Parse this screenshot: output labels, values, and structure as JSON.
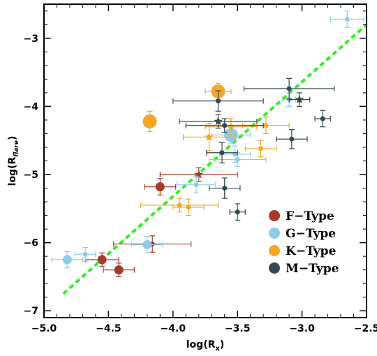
{
  "chart_data": {
    "type": "scatter",
    "title": "",
    "xlabel": {
      "base": "log(R",
      "sub": "x",
      "tail": ")"
    },
    "ylabel": {
      "base": "log(R",
      "sub": "flare",
      "tail": ")"
    },
    "xlim": [
      -5.0,
      -2.5
    ],
    "ylim": [
      -7.1,
      -2.5
    ],
    "x_ticks": [
      -5.0,
      -4.5,
      -4.0,
      -3.5,
      -3.0,
      -2.5
    ],
    "x_tick_labels": [
      "-5.0",
      "-4.5",
      "-4.0",
      "-3.5",
      "-3.0",
      "-2.5"
    ],
    "y_ticks": [
      -7,
      -6,
      -5,
      -4,
      -3
    ],
    "y_tick_labels": [
      "-7",
      "-6",
      "-5",
      "-4",
      "-3"
    ],
    "legend_position": "bottom-right",
    "fit_line": {
      "x": [
        -4.85,
        -2.5
      ],
      "y": [
        -6.75,
        -2.8
      ],
      "color": "#33ee22",
      "style": "dashed"
    },
    "series": [
      {
        "name": "F-Type",
        "color": "#a63a2a",
        "points": [
          {
            "x": -4.55,
            "y": -6.25,
            "xerr": 0.13,
            "yerr": 0.1,
            "size": "medium"
          },
          {
            "x": -4.42,
            "y": -6.4,
            "xerr": 0.12,
            "yerr": 0.1,
            "size": "medium"
          },
          {
            "x": -4.16,
            "y": -6.02,
            "xerr": 0.3,
            "yerr": 0.12,
            "size": "small"
          },
          {
            "x": -4.1,
            "y": -5.18,
            "xerr": 0.12,
            "yerr": 0.12,
            "size": "medium"
          },
          {
            "x": -3.8,
            "y": -5.0,
            "xerr": 0.3,
            "yerr": 0.1,
            "size": "star"
          }
        ]
      },
      {
        "name": "G-Type",
        "color": "#8ecdea",
        "points": [
          {
            "x": -4.82,
            "y": -6.25,
            "xerr": 0.12,
            "yerr": 0.12,
            "size": "medium"
          },
          {
            "x": -4.68,
            "y": -6.17,
            "xerr": 0.08,
            "yerr": 0.1,
            "size": "small"
          },
          {
            "x": -4.2,
            "y": -6.03,
            "xerr": 0.12,
            "yerr": 0.12,
            "size": "medium"
          },
          {
            "x": -3.82,
            "y": -5.15,
            "xerr": 0.15,
            "yerr": 0.12,
            "size": "small"
          },
          {
            "x": -3.55,
            "y": -4.42,
            "xerr": 0.15,
            "yerr": 0.12,
            "size": "large"
          },
          {
            "x": -3.52,
            "y": -4.7,
            "xerr": 0.12,
            "yerr": 0.12,
            "size": "small"
          },
          {
            "x": -3.5,
            "y": -4.78,
            "xerr": 0.22,
            "yerr": 0.1,
            "size": "small"
          },
          {
            "x": -3.1,
            "y": -3.9,
            "xerr": 0.05,
            "yerr": 0.1,
            "size": "small"
          },
          {
            "x": -2.65,
            "y": -2.72,
            "xerr": 0.13,
            "yerr": 0.12,
            "size": "small"
          }
        ]
      },
      {
        "name": "K-Type",
        "color": "#f5a623",
        "points": [
          {
            "x": -4.18,
            "y": -4.22,
            "xerr": 0.0,
            "yerr": 0.15,
            "size": "large"
          },
          {
            "x": -3.65,
            "y": -3.78,
            "xerr": 0.1,
            "yerr": 0.12,
            "size": "large"
          },
          {
            "x": -3.72,
            "y": -4.45,
            "xerr": 0.2,
            "yerr": 0.2,
            "size": "star"
          },
          {
            "x": -3.55,
            "y": -4.3,
            "xerr": 0.2,
            "yerr": 0.12,
            "size": "small"
          },
          {
            "x": -3.28,
            "y": -4.28,
            "xerr": 0.18,
            "yerr": 0.12,
            "size": "small"
          },
          {
            "x": -3.32,
            "y": -4.62,
            "xerr": 0.12,
            "yerr": 0.12,
            "size": "small"
          },
          {
            "x": -3.95,
            "y": -5.45,
            "xerr": 0.3,
            "yerr": 0.1,
            "size": "small"
          },
          {
            "x": -3.88,
            "y": -5.48,
            "xerr": 0.12,
            "yerr": 0.12,
            "size": "small"
          }
        ]
      },
      {
        "name": "M-Type",
        "color": "#34494d",
        "points": [
          {
            "x": -3.1,
            "y": -3.74,
            "xerr": 0.35,
            "yerr": 0.15,
            "size": "small"
          },
          {
            "x": -3.65,
            "y": -3.92,
            "xerr": 0.35,
            "yerr": 0.15,
            "size": "small"
          },
          {
            "x": -3.02,
            "y": -3.9,
            "xerr": 0.08,
            "yerr": 0.1,
            "size": "star"
          },
          {
            "x": -3.65,
            "y": -4.22,
            "xerr": 0.3,
            "yerr": 0.1,
            "size": "star"
          },
          {
            "x": -3.6,
            "y": -4.28,
            "xerr": 0.3,
            "yerr": 0.1,
            "size": "small"
          },
          {
            "x": -2.84,
            "y": -4.18,
            "xerr": 0.06,
            "yerr": 0.12,
            "size": "small"
          },
          {
            "x": -3.08,
            "y": -4.48,
            "xerr": 0.12,
            "yerr": 0.14,
            "size": "small"
          },
          {
            "x": -3.62,
            "y": -4.68,
            "xerr": 0.12,
            "yerr": 0.15,
            "size": "small"
          },
          {
            "x": -3.6,
            "y": -5.2,
            "xerr": 0.12,
            "yerr": 0.15,
            "size": "small"
          },
          {
            "x": -3.5,
            "y": -5.55,
            "xerr": 0.06,
            "yerr": 0.12,
            "size": "small"
          }
        ]
      }
    ]
  }
}
